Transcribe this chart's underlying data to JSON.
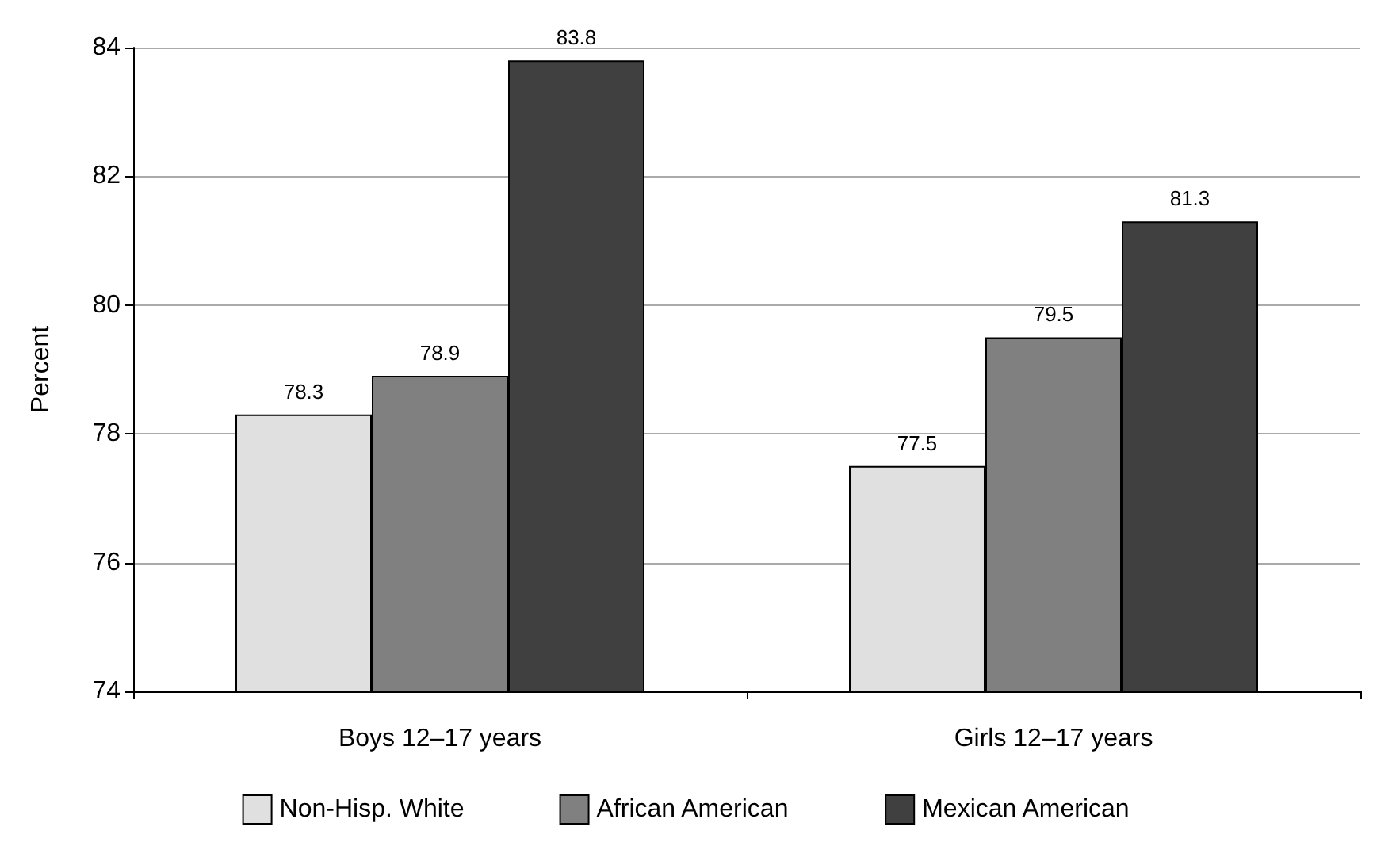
{
  "chart_data": {
    "type": "bar",
    "ylabel": "Percent",
    "categories": [
      "Boys 12–17 years",
      "Girls 12–17 years"
    ],
    "series": [
      {
        "name": "Non-Hisp. White",
        "color": "#e0e0e0",
        "values": [
          78.3,
          77.5
        ]
      },
      {
        "name": "African American",
        "color": "#808080",
        "values": [
          78.9,
          79.5
        ]
      },
      {
        "name": "Mexican American",
        "color": "#404040",
        "values": [
          83.8,
          81.3
        ]
      }
    ],
    "ylim": [
      74,
      84
    ],
    "yticks": [
      74,
      76,
      78,
      80,
      82,
      84
    ],
    "grid": "y",
    "legend": "bottom",
    "data_labels": true
  }
}
